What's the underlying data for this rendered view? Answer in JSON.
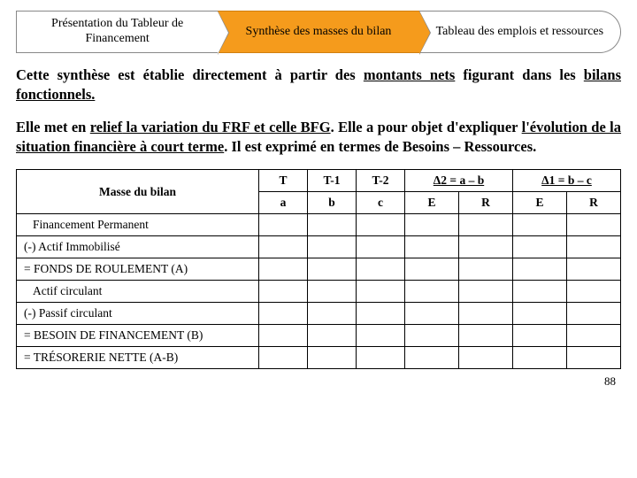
{
  "nav": {
    "items": [
      {
        "label": "Présentation du Tableur de Financement"
      },
      {
        "label": "Synthèse des masses du bilan"
      },
      {
        "label": "Tableau des emplois et ressources"
      }
    ]
  },
  "paragraphs": {
    "p1_a": "Cette synthèse est établie directement à partir des ",
    "p1_b": "montants nets",
    "p1_c": " figurant dans les ",
    "p1_d": "bilans fonctionnels.",
    "p2_a": "Elle met en ",
    "p2_b": "relief",
    "p2_c": " la variation du FRF et celle BFG",
    "p2_d": ". Elle a pour objet d'expliquer ",
    "p2_e": "l'évolution de la situation financière à court terme",
    "p2_f": ". Il est exprimé en termes de Besoins – Ressources."
  },
  "table": {
    "header1": {
      "t": "T",
      "t1": "T-1",
      "t2": "T-2",
      "d2": "Δ2 = a – b",
      "d1": "Δ1 = b – c"
    },
    "header2": {
      "masse": "Masse du bilan",
      "a": "a",
      "b": "b",
      "c": "c",
      "e": "E",
      "r": "R"
    },
    "rows": [
      {
        "label": "Financement Permanent",
        "indent": true
      },
      {
        "label": "(-) Actif Immobilisé",
        "indent": false
      },
      {
        "label": "= FONDS DE ROULEMENT (A)",
        "indent": false
      },
      {
        "label": "Actif circulant",
        "indent": true
      },
      {
        "label": "(-) Passif circulant",
        "indent": false
      },
      {
        "label": "= BESOIN DE FINANCEMENT (B)",
        "indent": false
      },
      {
        "label": "= TRÉSORERIE NETTE (A-B)",
        "indent": false
      }
    ]
  },
  "pagenum": "88"
}
